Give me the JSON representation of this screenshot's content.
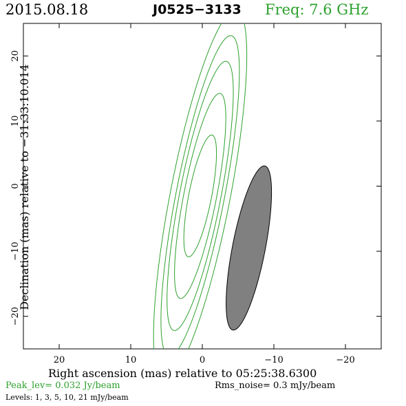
{
  "header": {
    "date": "2015.08.18",
    "source": "J0525−3133",
    "frequency": "Freq: 7.6 GHz"
  },
  "footer": {
    "xlabel": "Right ascension (mas) relative to 05:25:38.6300",
    "peak": "Peak_lev=  0.032 Jy/beam",
    "rms": "Rms_noise=   0.3 mJy/beam",
    "levels": "Levels:   1,    3,    5,   10,   21 mJy/beam"
  },
  "colors": {
    "contour": "#2ca02c",
    "beam_fill": "#808080",
    "axis": "#000000"
  },
  "chart_data": {
    "type": "contour",
    "xlabel": "Right ascension (mas) relative to 05:25:38.6300",
    "ylabel": "Declination (mas) relative to −31:33:10.014",
    "xlim": [
      25,
      -25
    ],
    "ylim": [
      -25,
      25
    ],
    "x_ticks": [
      20,
      10,
      0,
      -10,
      -20
    ],
    "y_ticks": [
      20,
      10,
      0,
      -10,
      -20
    ],
    "x_tick_labels": [
      "20",
      "10",
      "0",
      "−10",
      "−20"
    ],
    "y_tick_labels": [
      "20",
      "10",
      "0",
      "−10",
      "−20"
    ],
    "contour_levels_mJy": [
      1,
      3,
      5,
      10,
      21
    ],
    "contours": [
      {
        "level": 1,
        "center": [
          0.3,
          -1.5
        ],
        "a": 29.0,
        "b": 4.2,
        "pa": -10
      },
      {
        "level": 3,
        "center": [
          0.3,
          -1.5
        ],
        "a": 25.0,
        "b": 3.4,
        "pa": -10
      },
      {
        "level": 5,
        "center": [
          0.3,
          -1.5
        ],
        "a": 21.0,
        "b": 2.9,
        "pa": -10
      },
      {
        "level": 10,
        "center": [
          0.3,
          -1.5
        ],
        "a": 16.0,
        "b": 2.3,
        "pa": -10
      },
      {
        "level": 21,
        "center": [
          0.3,
          -1.5
        ],
        "a": 9.5,
        "b": 1.6,
        "pa": -10
      }
    ],
    "beam": {
      "center": [
        -6.5,
        -9.5
      ],
      "a": 12.8,
      "b": 2.3,
      "pa": -10
    }
  }
}
